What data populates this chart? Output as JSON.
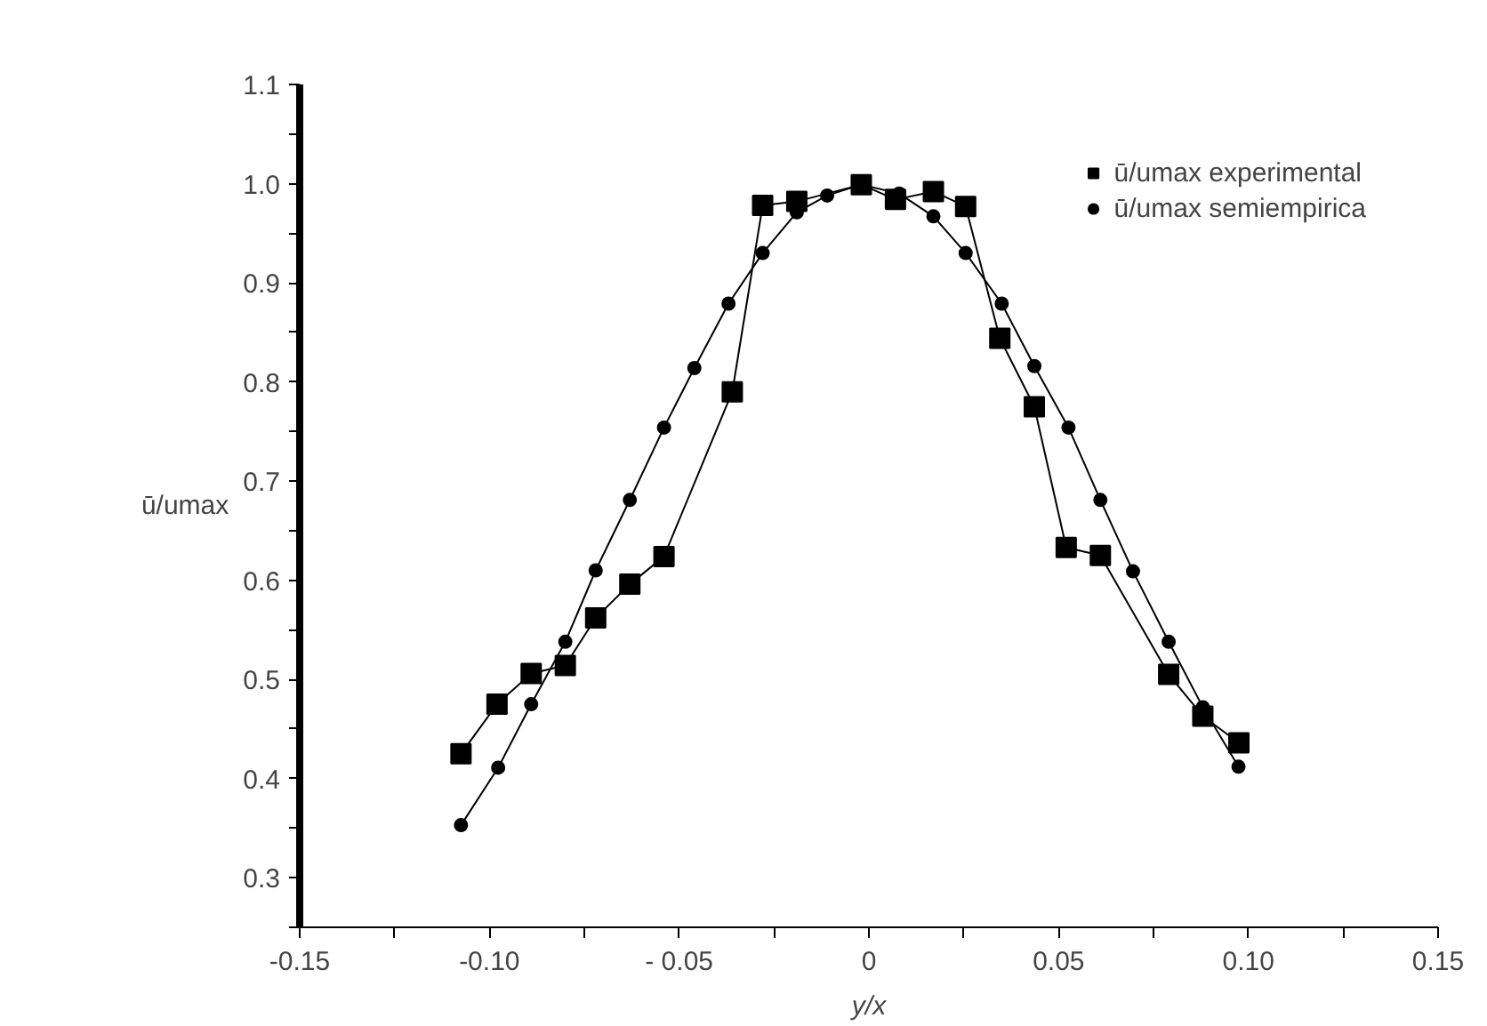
{
  "chart_data": {
    "type": "line",
    "xlabel": "y/x",
    "ylabel": "ū/umax",
    "xlim": [
      -0.15,
      0.15
    ],
    "ylim": [
      0.25,
      1.1
    ],
    "xticks": [
      {
        "value": -0.15,
        "label": "-0.15"
      },
      {
        "value": -0.125,
        "label": null
      },
      {
        "value": -0.1,
        "label": "-0.10"
      },
      {
        "value": -0.075,
        "label": null
      },
      {
        "value": -0.05,
        "label": "- 0.05"
      },
      {
        "value": -0.025,
        "label": null
      },
      0,
      {
        "value": 0.025,
        "label": null
      },
      {
        "value": 0.05,
        "label": "0.05"
      },
      {
        "value": 0.075,
        "label": null
      },
      {
        "value": 0.1,
        "label": "0.10"
      },
      {
        "value": 0.125,
        "label": null
      },
      {
        "value": 0.15,
        "label": "0.15"
      }
    ],
    "yticks": [
      {
        "value": 0.25,
        "label": null
      },
      0.3,
      {
        "value": 0.35,
        "label": null
      },
      0.4,
      {
        "value": 0.45,
        "label": null
      },
      0.5,
      {
        "value": 0.55,
        "label": null
      },
      0.6,
      {
        "value": 0.65,
        "label": null
      },
      0.7,
      {
        "value": 0.75,
        "label": null
      },
      0.8,
      {
        "value": 0.85,
        "label": null
      },
      0.9,
      {
        "value": 0.95,
        "label": null
      },
      {
        "value": 1.0,
        "label": "1.0"
      },
      {
        "value": 1.05,
        "label": null
      },
      1.1
    ],
    "grid": false,
    "legend": "top right",
    "line_style": "solid",
    "series": [
      {
        "name": "ū/umax experimental",
        "color": "#000000",
        "marker": "square",
        "x": [
          -0.1075,
          -0.098,
          -0.089,
          -0.08,
          -0.072,
          -0.063,
          -0.054,
          -0.036,
          -0.028,
          -0.019,
          -0.002,
          0.007,
          0.017,
          0.0255,
          0.0345,
          0.0436,
          0.052,
          0.061,
          0.079,
          0.088,
          0.0975
        ],
        "values": [
          0.425,
          0.475,
          0.506,
          0.514,
          0.562,
          0.596,
          0.624,
          0.79,
          0.978,
          0.982,
          0.999,
          0.984,
          0.992,
          0.977,
          0.844,
          0.775,
          0.633,
          0.625,
          0.505,
          0.463,
          0.436
        ]
      },
      {
        "name": "ū/umax semiempirica",
        "color": "#000000",
        "marker": "circle",
        "x": [
          -0.1075,
          -0.0977,
          -0.089,
          -0.08,
          -0.072,
          -0.063,
          -0.054,
          -0.046,
          -0.037,
          -0.028,
          -0.019,
          -0.011,
          -0.002,
          0.008,
          0.017,
          0.0255,
          0.035,
          0.0436,
          0.0526,
          0.061,
          0.0696,
          0.079,
          0.088,
          0.0974
        ],
        "values": [
          0.353,
          0.411,
          0.475,
          0.538,
          0.61,
          0.681,
          0.754,
          0.814,
          0.879,
          0.93,
          0.971,
          0.988,
          0.999,
          0.99,
          0.967,
          0.93,
          0.879,
          0.816,
          0.754,
          0.681,
          0.609,
          0.538,
          0.472,
          0.412
        ]
      }
    ]
  }
}
